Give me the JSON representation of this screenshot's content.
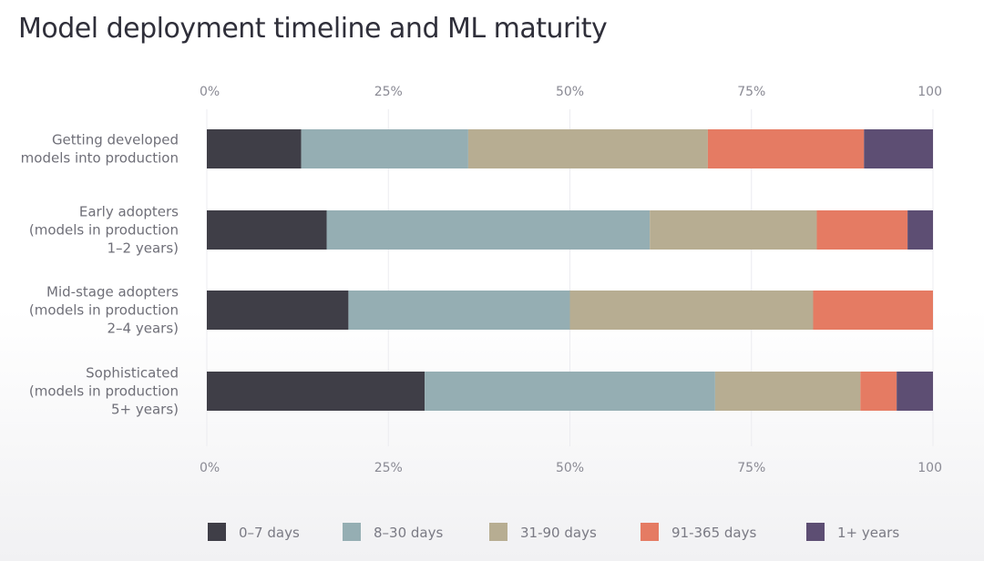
{
  "chart_data": {
    "type": "bar",
    "orientation": "horizontal",
    "stacked": true,
    "title": "Model deployment timeline and ML maturity",
    "xlabel": "",
    "ylabel": "",
    "xlim": [
      0,
      100
    ],
    "x_tick_labels": [
      "0%",
      "25%",
      "50%",
      "75%",
      "100"
    ],
    "x_tick_values": [
      0,
      25,
      50,
      75,
      100
    ],
    "categories": [
      [
        "Getting developed",
        "models into production"
      ],
      [
        "Early adopters",
        "(models in production",
        "1–2 years)"
      ],
      [
        "Mid-stage adopters",
        "(models in production",
        "2–4 years)"
      ],
      [
        "Sophisticated",
        "(models in production",
        "5+ years)"
      ]
    ],
    "series": [
      {
        "name": "0–7 days",
        "color": "#3f3e47",
        "values": [
          13,
          16.5,
          19.5,
          30
        ]
      },
      {
        "name": "8–30 days",
        "color": "#95aeb3",
        "values": [
          23,
          44.5,
          30.5,
          40
        ]
      },
      {
        "name": "31-90 days",
        "color": "#b7ad92",
        "values": [
          33,
          23,
          33.5,
          20
        ]
      },
      {
        "name": "91-365 days",
        "color": "#e57b63",
        "values": [
          21.5,
          12.5,
          16.5,
          5
        ]
      },
      {
        "name": "1+ years",
        "color": "#5d4e73",
        "values": [
          9.5,
          3.5,
          0,
          5
        ]
      }
    ],
    "grid": true,
    "legend_position": "bottom"
  }
}
